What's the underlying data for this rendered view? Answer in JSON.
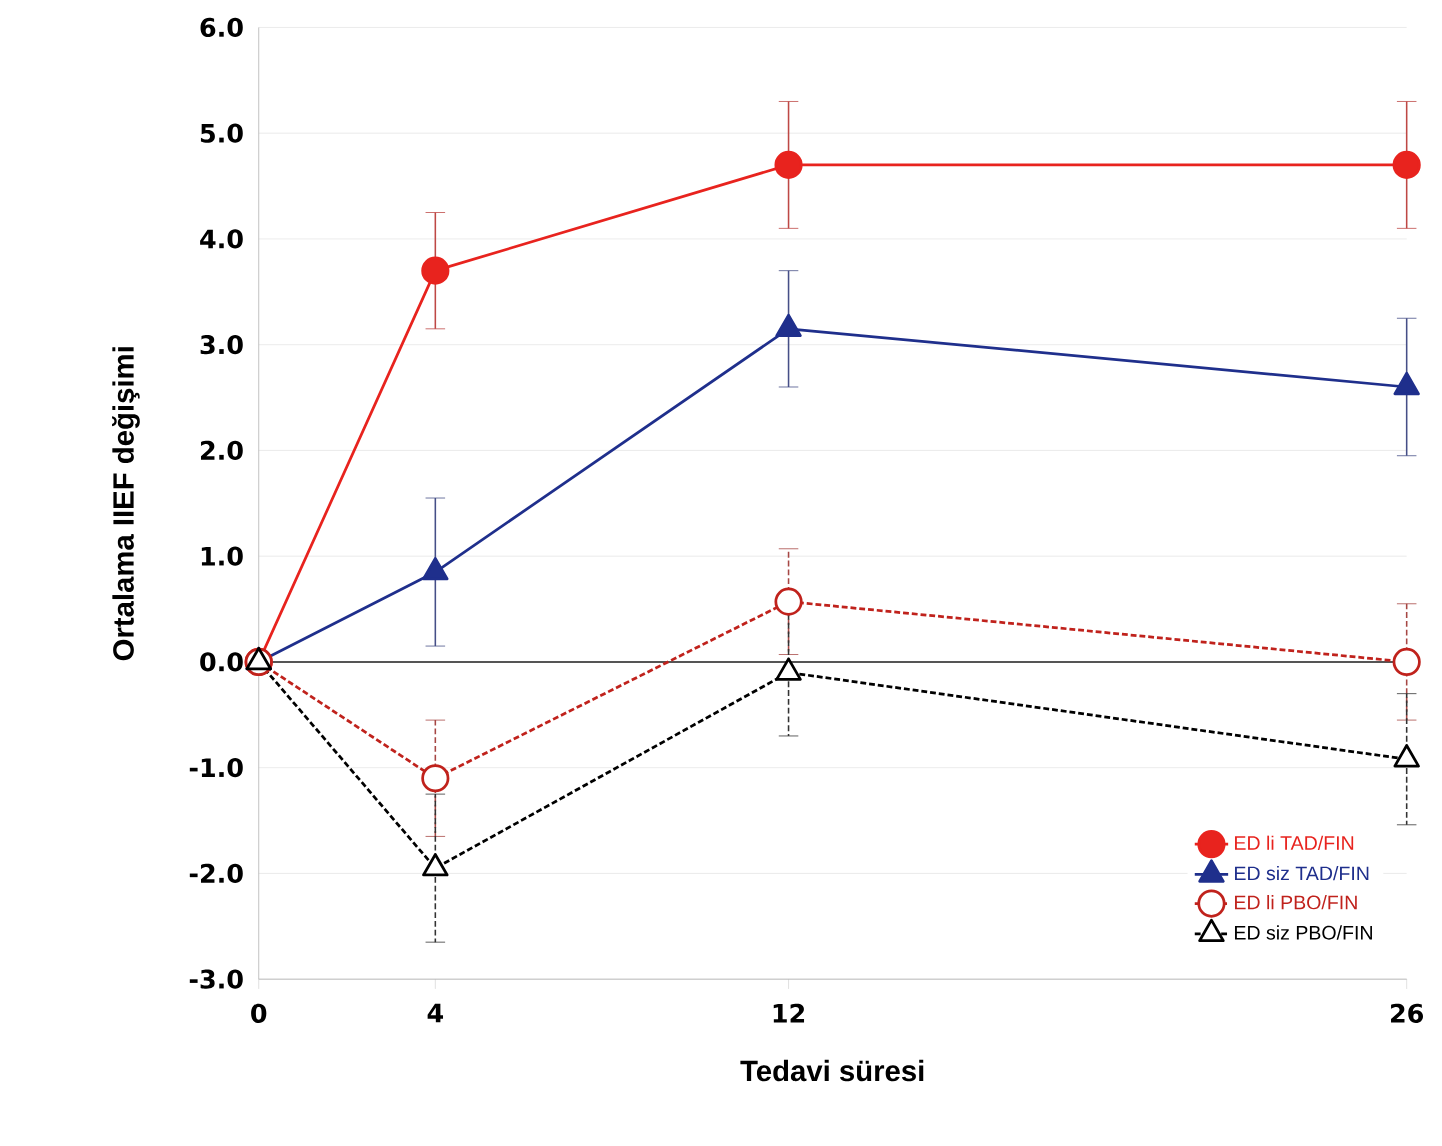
{
  "chart_data": {
    "type": "line",
    "xlabel": "Tedavi süresi",
    "ylabel": "Ortalama IIEF değişimi",
    "x": [
      0,
      4,
      12,
      26
    ],
    "xlim": [
      0,
      26
    ],
    "xticks": [
      0,
      4,
      12,
      26
    ],
    "ylim": [
      -3,
      6
    ],
    "yticks": [
      {
        "value": -3,
        "label": "-3.0"
      },
      {
        "value": -2,
        "label": "-2.0"
      },
      {
        "value": -1,
        "label": "-1.0"
      },
      {
        "value": 0,
        "label": "0.0"
      },
      {
        "value": 1,
        "label": "1.0"
      },
      {
        "value": 2,
        "label": "2.0"
      },
      {
        "value": 3,
        "label": "3.0"
      },
      {
        "value": 4,
        "label": "4.0"
      },
      {
        "value": 5,
        "label": "5.0"
      },
      {
        "value": 6,
        "label": "6.0"
      }
    ],
    "grid": "y",
    "legend": "bottom right",
    "ref_lines": [
      {
        "axis": "y",
        "value": 0,
        "color": "#555555"
      }
    ],
    "series": [
      {
        "name": "ED li TAD/FIN",
        "color": "#e8231e",
        "marker": "circle",
        "line_style": "solid",
        "values": [
          0,
          3.7,
          4.7,
          4.7
        ],
        "errors": [
          null,
          0.55,
          0.6,
          0.6
        ]
      },
      {
        "name": "ED siz TAD/FIN",
        "color": "#1f2f8c",
        "marker": "triangle",
        "line_style": "solid",
        "values": [
          0,
          0.85,
          3.15,
          2.6
        ],
        "errors": [
          null,
          0.7,
          0.55,
          0.65
        ]
      },
      {
        "name": "ED li PBO/FIN",
        "color": "#c0221c",
        "marker": "circle",
        "line_style": "dashed",
        "values": [
          0,
          -1.1,
          0.57,
          0
        ],
        "errors": [
          null,
          0.55,
          0.5,
          0.55
        ]
      },
      {
        "name": "ED siz PBO/FIN",
        "color": "#000000",
        "marker": "triangle",
        "line_style": "dashed",
        "values": [
          0,
          -1.95,
          -0.1,
          -0.92
        ],
        "errors": [
          null,
          0.7,
          0.6,
          0.62
        ]
      }
    ]
  }
}
